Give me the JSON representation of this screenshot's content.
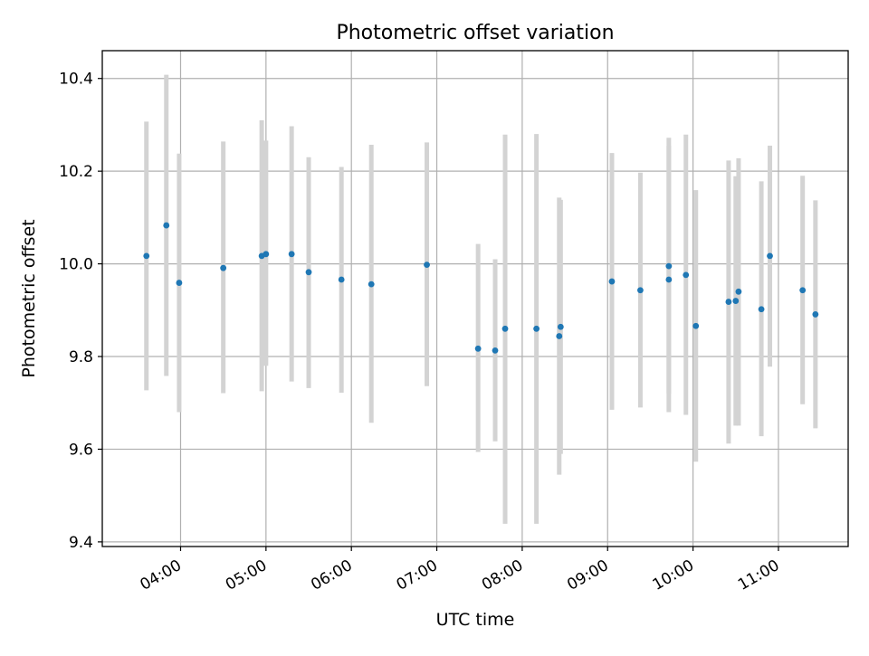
{
  "chart_data": {
    "type": "scatter",
    "title": "Photometric offset variation",
    "xlabel": "UTC time",
    "ylabel": "Photometric offset",
    "x_tick_labels": [
      "04:00",
      "05:00",
      "06:00",
      "07:00",
      "08:00",
      "09:00",
      "10:00",
      "11:00"
    ],
    "y_tick_labels": [
      "9.4",
      "9.6",
      "9.8",
      "10.0",
      "10.2",
      "10.4"
    ],
    "x_ticks_minutes": [
      240,
      300,
      360,
      420,
      480,
      540,
      600,
      660
    ],
    "y_ticks": [
      9.4,
      9.6,
      9.8,
      10.0,
      10.2,
      10.4
    ],
    "xlim_minutes": [
      185,
      709
    ],
    "ylim": [
      9.39,
      10.46
    ],
    "grid": true,
    "colors": {
      "points": "#1f77b4",
      "errorbars": "#d3d3d3",
      "grid": "#b0b0b0"
    },
    "series": [
      {
        "points": [
          {
            "t": "03:36",
            "y": 10.017,
            "lo": 9.727,
            "hi": 10.307
          },
          {
            "t": "03:50",
            "y": 10.083,
            "lo": 9.758,
            "hi": 10.408
          },
          {
            "t": "03:59",
            "y": 9.959,
            "lo": 9.68,
            "hi": 10.238
          },
          {
            "t": "04:30",
            "y": 9.991,
            "lo": 9.721,
            "hi": 10.264
          },
          {
            "t": "04:57",
            "y": 10.017,
            "lo": 9.725,
            "hi": 10.31
          },
          {
            "t": "05:00",
            "y": 10.021,
            "lo": 9.78,
            "hi": 10.266
          },
          {
            "t": "05:18",
            "y": 10.021,
            "lo": 9.746,
            "hi": 10.297
          },
          {
            "t": "05:30",
            "y": 9.982,
            "lo": 9.732,
            "hi": 10.23
          },
          {
            "t": "05:53",
            "y": 9.966,
            "lo": 9.722,
            "hi": 10.209
          },
          {
            "t": "06:14",
            "y": 9.956,
            "lo": 9.657,
            "hi": 10.257
          },
          {
            "t": "06:53",
            "y": 9.998,
            "lo": 9.736,
            "hi": 10.262
          },
          {
            "t": "07:29",
            "y": 9.817,
            "lo": 9.594,
            "hi": 10.043
          },
          {
            "t": "07:41",
            "y": 9.813,
            "lo": 9.617,
            "hi": 10.01
          },
          {
            "t": "07:48",
            "y": 9.86,
            "lo": 9.439,
            "hi": 10.279
          },
          {
            "t": "08:10",
            "y": 9.86,
            "lo": 9.439,
            "hi": 10.28
          },
          {
            "t": "08:26",
            "y": 9.844,
            "lo": 9.545,
            "hi": 10.143
          },
          {
            "t": "08:27",
            "y": 9.864,
            "lo": 9.59,
            "hi": 10.138
          },
          {
            "t": "09:03",
            "y": 9.962,
            "lo": 9.685,
            "hi": 10.239
          },
          {
            "t": "09:23",
            "y": 9.943,
            "lo": 9.69,
            "hi": 10.197
          },
          {
            "t": "09:43",
            "y": 9.995,
            "lo": 9.72,
            "hi": 10.272
          },
          {
            "t": "09:43",
            "y": 9.966,
            "lo": 9.68,
            "hi": 10.255
          },
          {
            "t": "09:55",
            "y": 9.976,
            "lo": 9.674,
            "hi": 10.279
          },
          {
            "t": "10:02",
            "y": 9.866,
            "lo": 9.573,
            "hi": 10.159
          },
          {
            "t": "10:25",
            "y": 9.918,
            "lo": 9.612,
            "hi": 10.223
          },
          {
            "t": "10:30",
            "y": 9.92,
            "lo": 9.651,
            "hi": 10.189
          },
          {
            "t": "10:32",
            "y": 9.94,
            "lo": 9.651,
            "hi": 10.228
          },
          {
            "t": "10:48",
            "y": 9.902,
            "lo": 9.628,
            "hi": 10.178
          },
          {
            "t": "10:54",
            "y": 10.017,
            "lo": 9.778,
            "hi": 10.255
          },
          {
            "t": "11:17",
            "y": 9.943,
            "lo": 9.697,
            "hi": 10.19
          },
          {
            "t": "11:26",
            "y": 9.891,
            "lo": 9.645,
            "hi": 10.137
          }
        ]
      }
    ]
  }
}
